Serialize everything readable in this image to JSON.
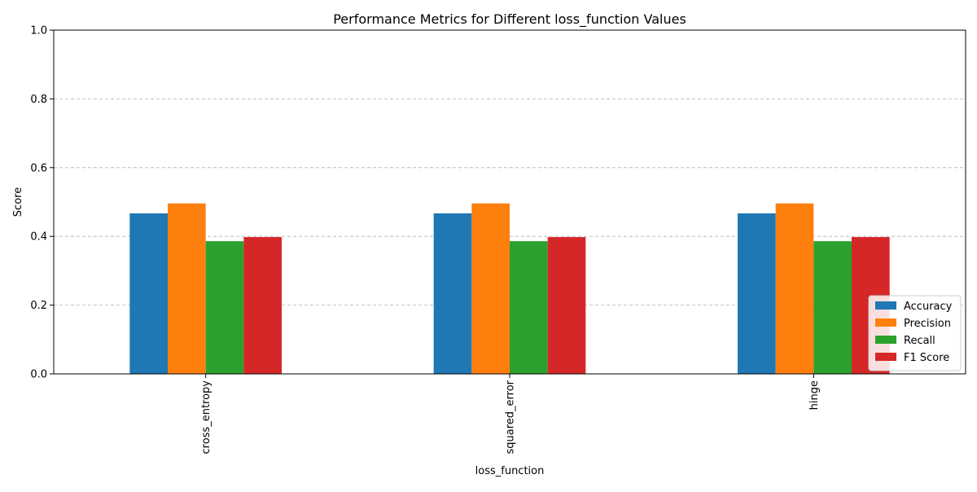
{
  "chart_data": {
    "type": "bar",
    "title": "Performance Metrics for Different loss_function Values",
    "xlabel": "loss_function",
    "ylabel": "Score",
    "categories": [
      "cross_entropy",
      "squared_error",
      "hinge"
    ],
    "series": [
      {
        "name": "Accuracy",
        "color": "#1f77b4",
        "values": [
          0.467,
          0.467,
          0.467
        ]
      },
      {
        "name": "Precision",
        "color": "#ff7f0e",
        "values": [
          0.496,
          0.496,
          0.496
        ]
      },
      {
        "name": "Recall",
        "color": "#2ca02c",
        "values": [
          0.386,
          0.386,
          0.386
        ]
      },
      {
        "name": "F1 Score",
        "color": "#d62728",
        "values": [
          0.398,
          0.398,
          0.398
        ]
      }
    ],
    "ylim": [
      0,
      1
    ],
    "yticks": [
      "0.0",
      "0.2",
      "0.4",
      "0.6",
      "0.8",
      "1.0"
    ],
    "grid": "y, dashed",
    "legend_position": "lower right"
  }
}
